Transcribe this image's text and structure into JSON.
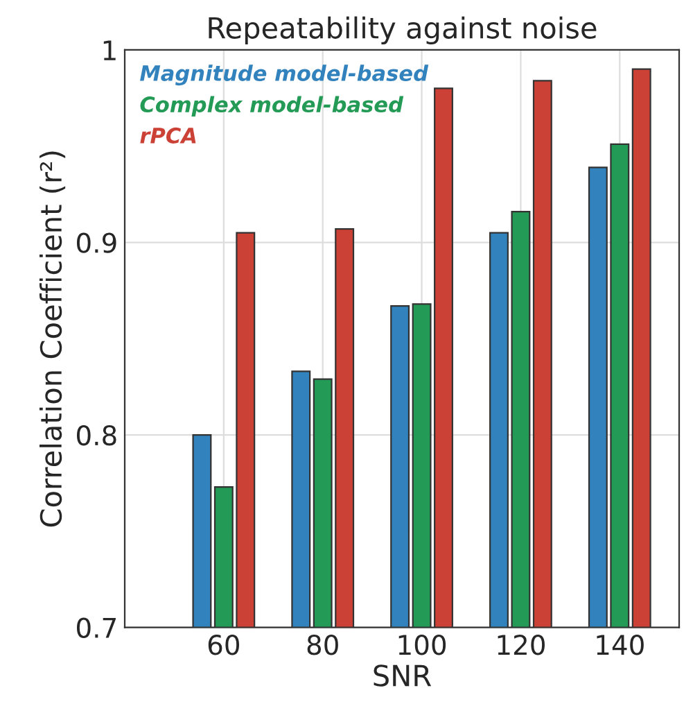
{
  "chart_data": {
    "type": "bar",
    "title": "Repeatability against noise",
    "xlabel": "SNR",
    "ylabel": "Correlation Coefficient (r²)",
    "categories": [
      "60",
      "80",
      "100",
      "120",
      "140"
    ],
    "series": [
      {
        "name": "Magnitude model-based",
        "color": "#3182bd",
        "values": [
          0.8,
          0.833,
          0.867,
          0.905,
          0.939
        ]
      },
      {
        "name": "Complex model-based",
        "color": "#239a55",
        "values": [
          0.773,
          0.829,
          0.868,
          0.916,
          0.951
        ]
      },
      {
        "name": "rPCA",
        "color": "#cc4136",
        "values": [
          0.905,
          0.907,
          0.98,
          0.984,
          0.99
        ]
      }
    ],
    "ylim": [
      0.7,
      1.0
    ],
    "yticks": [
      0.7,
      0.8,
      0.9,
      1
    ],
    "grid": true,
    "legend": "top left"
  }
}
